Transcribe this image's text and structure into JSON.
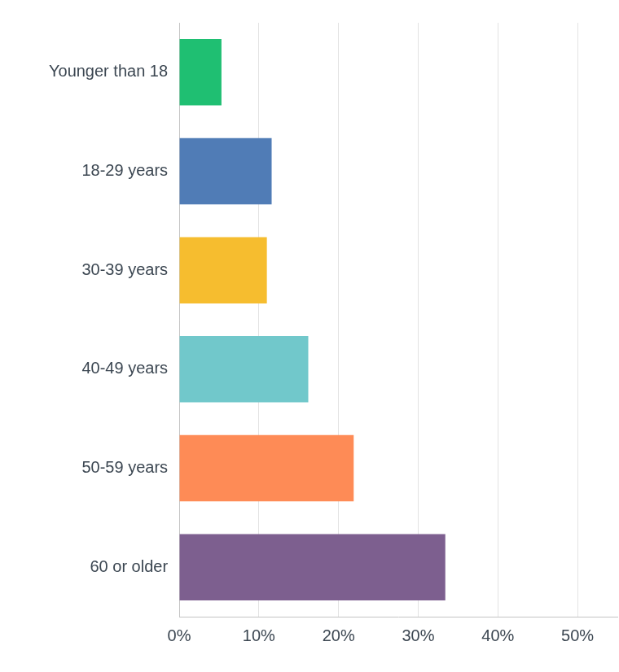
{
  "chart_data": {
    "type": "bar",
    "orientation": "horizontal",
    "categories": [
      "Younger than 18",
      "18-29 years",
      "30-39 years",
      "40-49 years",
      "50-59 years",
      "60 or older"
    ],
    "values": [
      5.3,
      11.6,
      11.0,
      16.2,
      21.9,
      33.4
    ],
    "colors": [
      "#1fbf72",
      "#507cb6",
      "#f6bd2f",
      "#71c8cb",
      "#fe8b56",
      "#7d5f8f"
    ],
    "xlim": [
      0,
      55
    ],
    "xticks": [
      {
        "value": 0,
        "label": "0%"
      },
      {
        "value": 10,
        "label": "10%"
      },
      {
        "value": 20,
        "label": "20%"
      },
      {
        "value": 30,
        "label": "30%"
      },
      {
        "value": 40,
        "label": "40%"
      },
      {
        "value": 50,
        "label": "50%"
      }
    ],
    "grid": true
  }
}
